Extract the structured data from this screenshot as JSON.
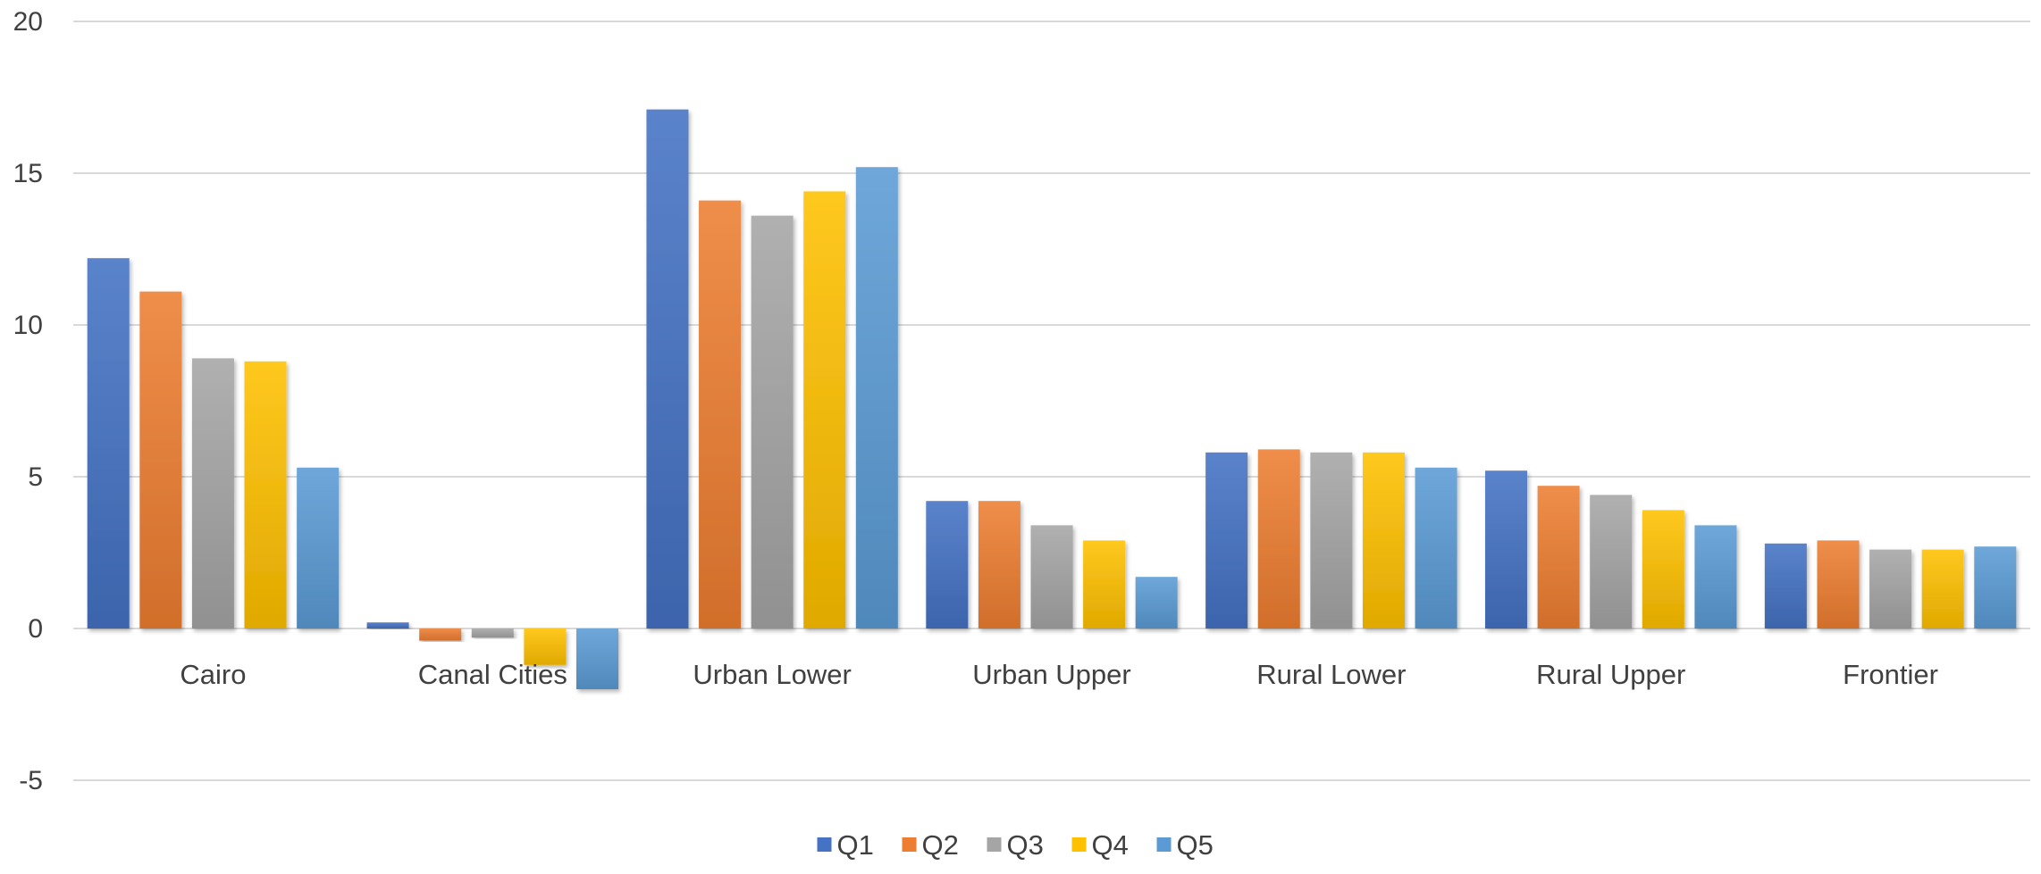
{
  "chart_data": {
    "type": "bar",
    "categories": [
      "Cairo",
      "Canal Cities",
      "Urban Lower",
      "Urban Upper",
      "Rural Lower",
      "Rural Upper",
      "Frontier"
    ],
    "series": [
      {
        "name": "Q1",
        "color": "#4472C4",
        "values": [
          12.2,
          0.2,
          17.1,
          4.2,
          5.8,
          5.2,
          2.8
        ]
      },
      {
        "name": "Q2",
        "color": "#ED7D31",
        "values": [
          11.1,
          -0.4,
          14.1,
          4.2,
          5.9,
          4.7,
          2.9
        ]
      },
      {
        "name": "Q3",
        "color": "#A5A5A5",
        "values": [
          8.9,
          -0.3,
          13.6,
          3.4,
          5.8,
          4.4,
          2.6
        ]
      },
      {
        "name": "Q4",
        "color": "#FFC000",
        "values": [
          8.8,
          -1.2,
          14.4,
          2.9,
          5.8,
          3.9,
          2.6
        ]
      },
      {
        "name": "Q5",
        "color": "#5B9BD5",
        "values": [
          5.3,
          -2.0,
          15.2,
          1.7,
          5.3,
          3.4,
          2.7
        ]
      }
    ],
    "ylim": [
      -5,
      20
    ],
    "yticks": [
      -5,
      0,
      5,
      10,
      15,
      20
    ],
    "ytick_labels": [
      "-5",
      "0",
      "5",
      "10",
      "15",
      "20"
    ],
    "grid": true,
    "legend_position": "bottom",
    "title": "",
    "xlabel": "",
    "ylabel": ""
  }
}
